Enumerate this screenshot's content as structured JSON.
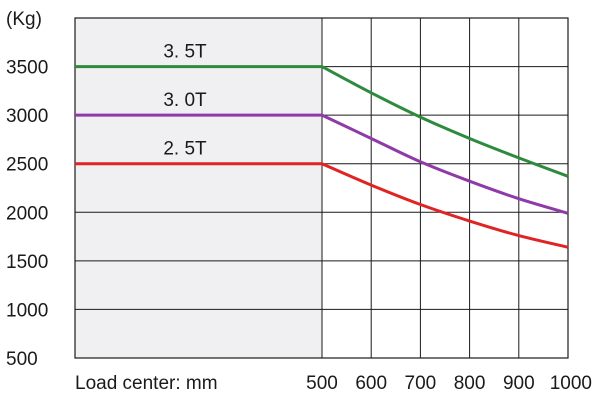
{
  "chart_data": {
    "type": "line",
    "title": "",
    "ylabel": "(Kg)",
    "xlabel": "Load center: mm",
    "ylim": [
      500,
      4000
    ],
    "y_ticks": [
      500,
      1000,
      1500,
      2000,
      2500,
      3000,
      3500
    ],
    "y_tick_labels": [
      "500",
      "1000",
      "1500",
      "2000",
      "2500",
      "3000",
      "3500"
    ],
    "xlim": [
      0,
      1000
    ],
    "x_ticks": [
      500,
      600,
      700,
      800,
      900,
      1000
    ],
    "x_tick_labels": [
      "500",
      "600",
      "700",
      "800",
      "900",
      "1000"
    ],
    "x_vertical_gridlines": [
      600,
      700,
      800,
      900
    ],
    "shaded_region": {
      "x": [
        0,
        500
      ],
      "color": "#f0f0f2"
    },
    "grid": true,
    "series": [
      {
        "name": "3. 5T",
        "color": "#2e8b3e",
        "x": [
          0,
          500,
          600,
          700,
          800,
          900,
          1000
        ],
        "y": [
          3500,
          3500,
          3230,
          2980,
          2760,
          2560,
          2370
        ]
      },
      {
        "name": "3. 0T",
        "color": "#8e3aa8",
        "x": [
          0,
          500,
          600,
          700,
          800,
          900,
          1000
        ],
        "y": [
          3000,
          3000,
          2760,
          2520,
          2320,
          2140,
          1990
        ]
      },
      {
        "name": "2. 5T",
        "color": "#e02424",
        "x": [
          0,
          500,
          600,
          700,
          800,
          900,
          1000
        ],
        "y": [
          2500,
          2500,
          2280,
          2080,
          1910,
          1760,
          1640
        ]
      }
    ]
  }
}
